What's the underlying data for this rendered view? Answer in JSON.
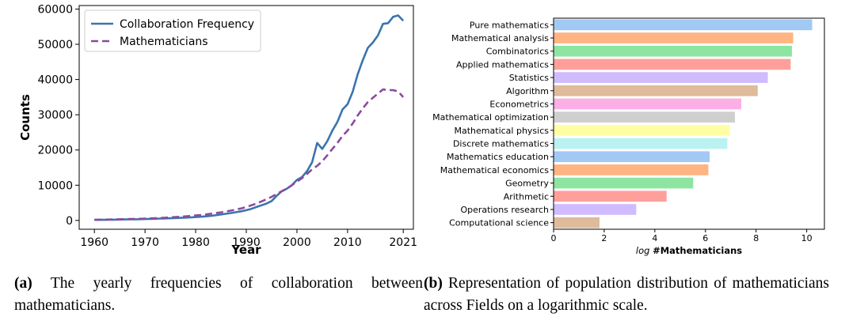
{
  "chart_data": [
    {
      "type": "line",
      "xlabel": "Year",
      "ylabel": "Counts",
      "xlim": [
        1957,
        2023
      ],
      "ylim": [
        -2500,
        61000
      ],
      "xticks": [
        1960,
        1970,
        1980,
        1990,
        2000,
        2010,
        2021
      ],
      "yticks": [
        0,
        10000,
        20000,
        30000,
        40000,
        50000,
        60000
      ],
      "grid": false,
      "legend_position": "top-left",
      "x": [
        1960,
        1961,
        1962,
        1963,
        1964,
        1965,
        1966,
        1967,
        1968,
        1969,
        1970,
        1971,
        1972,
        1973,
        1974,
        1975,
        1976,
        1977,
        1978,
        1979,
        1980,
        1981,
        1982,
        1983,
        1984,
        1985,
        1986,
        1987,
        1988,
        1989,
        1990,
        1991,
        1992,
        1993,
        1994,
        1995,
        1996,
        1997,
        1998,
        1999,
        2000,
        2001,
        2002,
        2003,
        2004,
        2005,
        2006,
        2007,
        2008,
        2009,
        2010,
        2011,
        2012,
        2013,
        2014,
        2015,
        2016,
        2017,
        2018,
        2019,
        2020,
        2021
      ],
      "series": [
        {
          "name": "Collaboration Frequency",
          "color": "#3a75ad",
          "style": "solid",
          "values": [
            150,
            160,
            180,
            200,
            220,
            250,
            280,
            300,
            330,
            360,
            400,
            440,
            480,
            520,
            570,
            620,
            680,
            740,
            800,
            870,
            950,
            1050,
            1150,
            1300,
            1500,
            1700,
            1900,
            2100,
            2350,
            2600,
            2900,
            3300,
            3800,
            4300,
            4800,
            5500,
            7000,
            8300,
            9000,
            10000,
            11500,
            12300,
            14000,
            16500,
            22000,
            20300,
            22500,
            25500,
            28000,
            31500,
            33000,
            36500,
            41500,
            45500,
            49000,
            50500,
            52500,
            55800,
            56000,
            57800,
            58200,
            56700
          ]
        },
        {
          "name": "Mathematicians",
          "color": "#8c4a9e",
          "style": "dashed",
          "values": [
            200,
            220,
            240,
            270,
            300,
            330,
            360,
            390,
            430,
            470,
            520,
            580,
            640,
            700,
            780,
            860,
            950,
            1050,
            1150,
            1250,
            1400,
            1550,
            1700,
            1900,
            2100,
            2300,
            2550,
            2800,
            3100,
            3400,
            3800,
            4300,
            4800,
            5400,
            6000,
            6700,
            7500,
            8300,
            9000,
            10000,
            11000,
            12000,
            13200,
            14500,
            15500,
            16800,
            18500,
            20300,
            22000,
            24000,
            25500,
            27500,
            29800,
            31800,
            33600,
            34800,
            36000,
            37200,
            37000,
            37000,
            36600,
            35000
          ]
        }
      ]
    },
    {
      "type": "bar",
      "orientation": "horizontal",
      "xlabel": "log #Mathematicians",
      "ylabel": "",
      "xlim": [
        0,
        10.7
      ],
      "xticks": [
        0,
        2,
        4,
        6,
        8,
        10
      ],
      "grid": false,
      "categories": [
        "Pure mathematics",
        "Mathematical analysis",
        "Combinatorics",
        "Applied mathematics",
        "Statistics",
        "Algorithm",
        "Econometrics",
        "Mathematical optimization",
        "Mathematical physics",
        "Discrete mathematics",
        "Mathematics education",
        "Mathematical economics",
        "Geometry",
        "Arithmetic",
        "Operations research",
        "Computational science"
      ],
      "values": [
        10.2,
        9.45,
        9.4,
        9.35,
        8.45,
        8.05,
        7.4,
        7.15,
        6.95,
        6.85,
        6.15,
        6.1,
        5.5,
        4.45,
        3.25,
        1.8
      ],
      "colors": [
        "#a1c9f4",
        "#ffb482",
        "#8de5a1",
        "#ff9f9b",
        "#d0bbff",
        "#debb9b",
        "#fab0e4",
        "#cfcfcf",
        "#fffea3",
        "#b9f2f0",
        "#a1c9f4",
        "#ffb482",
        "#8de5a1",
        "#ff9f9b",
        "#d0bbff",
        "#debb9b"
      ]
    }
  ],
  "captions": {
    "a": {
      "label": "(a)",
      "text": "The yearly frequencies of collaboration between mathematicians."
    },
    "b": {
      "label": "(b)",
      "text": "Representation of population distribution of mathematicians across Fields on a logarithmic scale."
    }
  }
}
